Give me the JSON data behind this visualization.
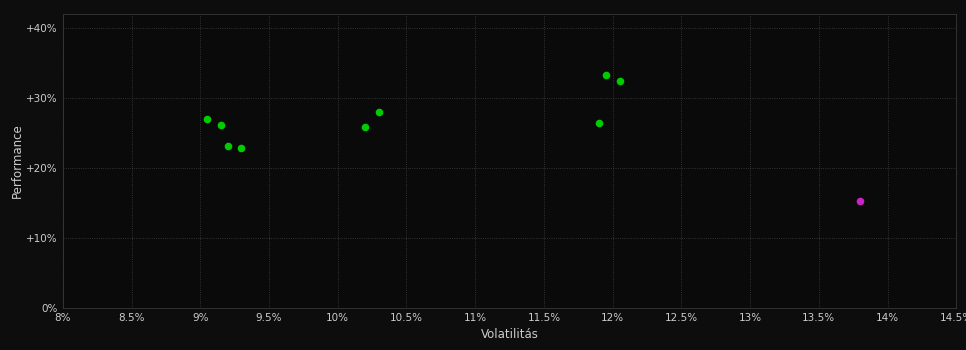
{
  "background_color": "#0d0d0d",
  "plot_bg_color": "#0a0a0a",
  "grid_color": "#404040",
  "text_color": "#cccccc",
  "xlabel": "Volatilitás",
  "ylabel": "Performance",
  "xlim": [
    0.08,
    0.145
  ],
  "ylim": [
    0.0,
    0.42
  ],
  "xticks": [
    0.08,
    0.085,
    0.09,
    0.095,
    0.1,
    0.105,
    0.11,
    0.115,
    0.12,
    0.125,
    0.13,
    0.135,
    0.14,
    0.145
  ],
  "yticks": [
    0.0,
    0.1,
    0.2,
    0.3,
    0.4
  ],
  "green_points": [
    [
      0.0905,
      0.27
    ],
    [
      0.0915,
      0.262
    ],
    [
      0.092,
      0.232
    ],
    [
      0.093,
      0.228
    ],
    [
      0.102,
      0.258
    ],
    [
      0.103,
      0.28
    ],
    [
      0.119,
      0.265
    ],
    [
      0.1195,
      0.333
    ],
    [
      0.1205,
      0.325
    ]
  ],
  "magenta_points": [
    [
      0.138,
      0.153
    ]
  ],
  "green_color": "#00cc00",
  "magenta_color": "#cc22cc",
  "marker_size": 20
}
